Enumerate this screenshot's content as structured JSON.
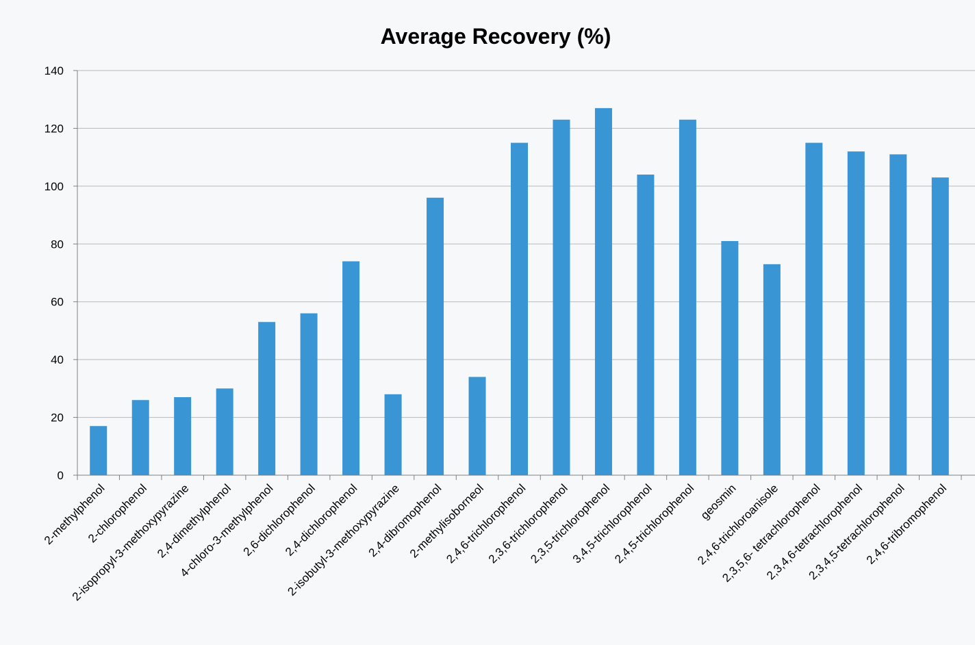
{
  "chart_data": {
    "type": "bar",
    "title": "Average Recovery (%)",
    "xlabel": "",
    "ylabel": "",
    "ylim": [
      0,
      140
    ],
    "yticks": [
      "0",
      "20",
      "40",
      "60",
      "80",
      "100",
      "120",
      "140"
    ],
    "grid": true,
    "bar_color": "#3a95d4",
    "categories": [
      "2-methylphenol",
      "2-chlorophenol",
      "2-isopropyl-3-methoxypyrazine",
      "2,4-dimethylphenol",
      "4-chloro-3-methylphenol",
      "2,6-dichlorophenol",
      "2,4-dichlorophenol",
      "2-isobutyl-3-methoxypyrazine",
      "2,4-dibromophenol",
      "2-methylisoborneol",
      "2,4,6-trichlorophenol",
      "2,3,6-trichlorophenol",
      "2,3,5-trichlorophenol",
      "3,4,5-trichlorophenol",
      "2,4,5-trichlorophenol",
      "geosmin",
      "2,4,6-trichloroanisole",
      "2,3,5,6- tetrachlorophenol",
      "2,3,4,6-tetrachlorophenol",
      "2,3,4,5-tetrachlorophenol",
      "2,4,6-tribromophenol"
    ],
    "values": [
      17,
      26,
      27,
      30,
      53,
      56,
      74,
      28,
      96,
      34,
      115,
      123,
      127,
      104,
      123,
      81,
      73,
      115,
      112,
      111,
      103
    ]
  }
}
